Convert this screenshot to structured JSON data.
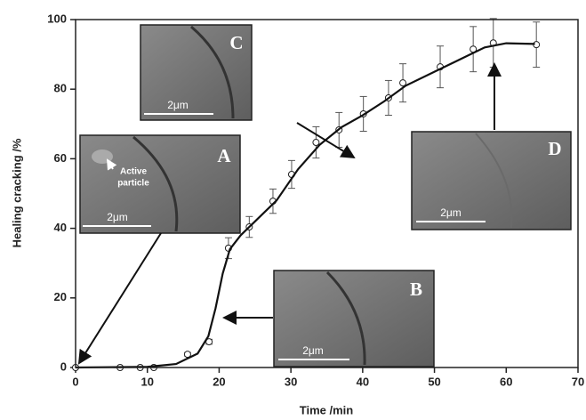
{
  "chart_data": {
    "type": "scatter",
    "xlabel": "Time /min",
    "ylabel": "Healing cracking /%",
    "xlim": [
      0,
      70
    ],
    "xticks": [
      0,
      10,
      20,
      30,
      40,
      50,
      60,
      70
    ],
    "ylim": [
      0,
      100
    ],
    "yticks": [
      0,
      20,
      40,
      60,
      80,
      100
    ],
    "series": [
      {
        "color": "#222222",
        "x": [
          0,
          6.2,
          9.0,
          10.9,
          15.6,
          18.6,
          21.3,
          24.2,
          27.5,
          30.1,
          33.5,
          36.7,
          40.1,
          43.6,
          45.6,
          50.8,
          55.4,
          58.2,
          64.2
        ],
        "values": [
          0,
          0,
          0,
          0,
          3.8,
          7.4,
          34.3,
          40.4,
          47.8,
          55.5,
          64.7,
          68.3,
          72.9,
          77.5,
          81.8,
          86.4,
          91.5,
          93.3,
          92.8
        ],
        "errors": [
          0,
          0,
          0,
          0,
          0.5,
          0.7,
          3,
          3,
          3.5,
          4,
          4.5,
          5,
          5,
          5,
          5.5,
          6,
          6.5,
          7,
          6.5
        ]
      },
      {
        "color": "#111111",
        "type": "line",
        "x": [
          0,
          10,
          14,
          17,
          18.5,
          19.5,
          20.5,
          21.5,
          23,
          25,
          28,
          31,
          34,
          37,
          40,
          43,
          46,
          50,
          54,
          57,
          60,
          64
        ],
        "values": [
          0,
          0.2,
          1,
          4,
          9,
          17,
          27,
          34,
          38,
          42,
          48,
          57,
          64,
          69,
          72.5,
          76.5,
          81,
          85,
          89,
          92,
          93.2,
          93
        ]
      }
    ],
    "insets": [
      {
        "label": "A",
        "scale": "2μm",
        "note": [
          "Active",
          "particle"
        ]
      },
      {
        "label": "B",
        "scale": "2μm"
      },
      {
        "label": "C",
        "scale": "2μm"
      },
      {
        "label": "D",
        "scale": "2μm"
      }
    ]
  }
}
